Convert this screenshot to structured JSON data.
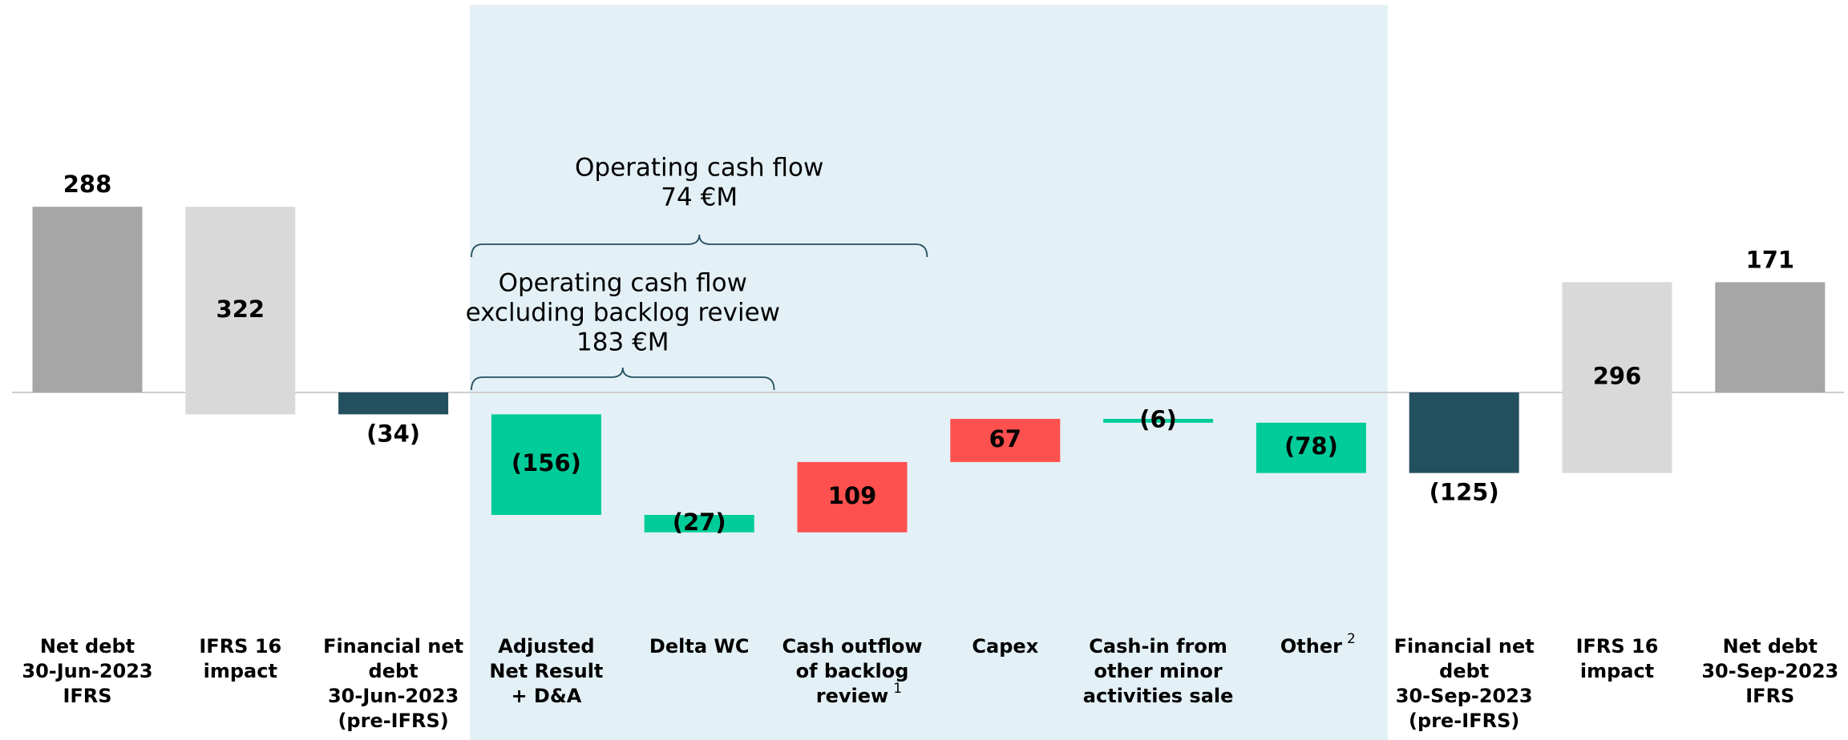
{
  "chart_data": {
    "type": "waterfall",
    "categories": [
      [
        "Net debt",
        "30-Jun-2023",
        "IFRS"
      ],
      [
        "IFRS 16",
        "impact"
      ],
      [
        "Financial net",
        "debt",
        "30-Jun-2023",
        "(pre-IFRS)"
      ],
      [
        "Adjusted",
        "Net Result",
        "+ D&A"
      ],
      [
        "Delta WC"
      ],
      [
        "Cash outflow",
        "of backlog",
        "review"
      ],
      [
        "Capex"
      ],
      [
        "Cash-in from",
        "other minor",
        "activities sale"
      ],
      [
        "Other"
      ],
      [
        "Financial net",
        "debt",
        "30-Sep-2023",
        "(pre-IFRS)"
      ],
      [
        "IFRS 16",
        "impact"
      ],
      [
        "Net debt",
        "30-Sep-2023",
        "IFRS"
      ]
    ],
    "category_notes": [
      null,
      null,
      null,
      null,
      null,
      "1",
      null,
      null,
      "2",
      null,
      null,
      null
    ],
    "measure": [
      "absolute",
      "relative",
      "absolute",
      "relative",
      "relative",
      "relative",
      "relative",
      "relative",
      "relative",
      "absolute",
      "relative",
      "absolute"
    ],
    "values": [
      288,
      -322,
      -34,
      -156,
      -27,
      109,
      67,
      -6,
      -78,
      -125,
      296,
      171
    ],
    "value_labels": [
      "288",
      "322",
      "(34)",
      "(156)",
      "(27)",
      "109",
      "67",
      "(6)",
      "(78)",
      "(125)",
      "296",
      "171"
    ],
    "colors": [
      "#a6a6a6",
      "#d9d9d9",
      "#23505f",
      "#00cc99",
      "#00cc99",
      "#ff5050",
      "#ff5050",
      "#00cc99",
      "#00cc99",
      "#23505f",
      "#d9d9d9",
      "#a6a6a6"
    ],
    "highlight_range": [
      3,
      8
    ],
    "annotations": [
      {
        "lines": [
          "Operating cash flow",
          "74 €M"
        ],
        "from": 3,
        "to": 5
      },
      {
        "lines": [
          "Operating cash flow",
          "excluding backlog review",
          "183 €M"
        ],
        "from": 3,
        "to": 4
      }
    ]
  }
}
